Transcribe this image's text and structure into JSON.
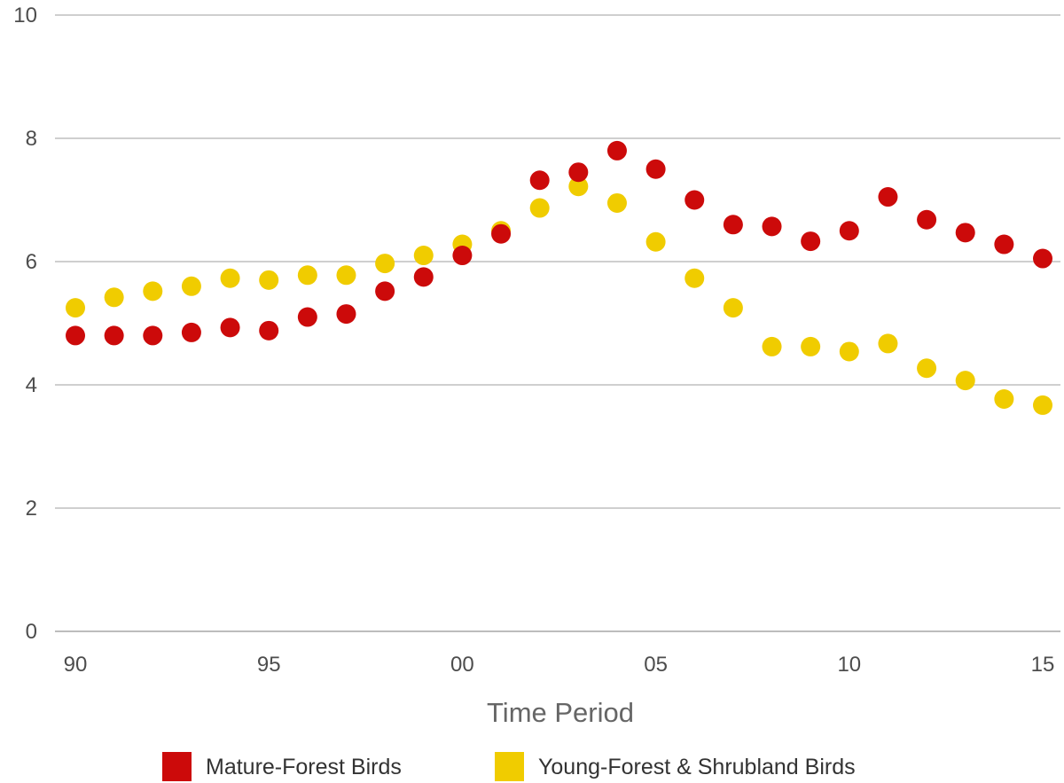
{
  "chart_data": {
    "type": "scatter",
    "title": "",
    "xlabel": "Time Period",
    "ylabel": "",
    "x": [
      1990,
      1991,
      1992,
      1993,
      1994,
      1995,
      1996,
      1997,
      1998,
      1999,
      2000,
      2001,
      2002,
      2003,
      2004,
      2005,
      2006,
      2007,
      2008,
      2009,
      2010,
      2011,
      2012,
      2013,
      2014,
      2015
    ],
    "x_ticks": [
      {
        "value": 1990,
        "label": "90"
      },
      {
        "value": 1995,
        "label": "95"
      },
      {
        "value": 2000,
        "label": "00"
      },
      {
        "value": 2005,
        "label": "05"
      },
      {
        "value": 2010,
        "label": "10"
      },
      {
        "value": 2015,
        "label": "15"
      }
    ],
    "xlim": [
      1989.8,
      2015.1
    ],
    "y_ticks": [
      0,
      2,
      4,
      6,
      8,
      10
    ],
    "ylim": [
      0,
      10
    ],
    "grid": true,
    "legend_position": "bottom",
    "series": [
      {
        "name": "Mature-Forest Birds",
        "color": "#cc0a0a",
        "values": [
          4.8,
          4.8,
          4.8,
          4.85,
          4.93,
          4.88,
          5.1,
          5.15,
          5.52,
          5.75,
          6.1,
          6.45,
          7.32,
          7.45,
          7.8,
          7.5,
          7.0,
          6.6,
          6.57,
          6.33,
          6.5,
          7.05,
          6.68,
          6.47,
          6.28,
          6.05
        ]
      },
      {
        "name": "Young-Forest & Shrubland Birds",
        "color": "#f0cc00",
        "values": [
          5.25,
          5.42,
          5.52,
          5.6,
          5.73,
          5.7,
          5.78,
          5.78,
          5.97,
          6.1,
          6.28,
          6.5,
          6.87,
          7.22,
          6.95,
          6.32,
          5.73,
          5.25,
          4.62,
          4.62,
          4.54,
          4.67,
          4.27,
          4.07,
          3.77,
          3.67
        ]
      }
    ]
  }
}
